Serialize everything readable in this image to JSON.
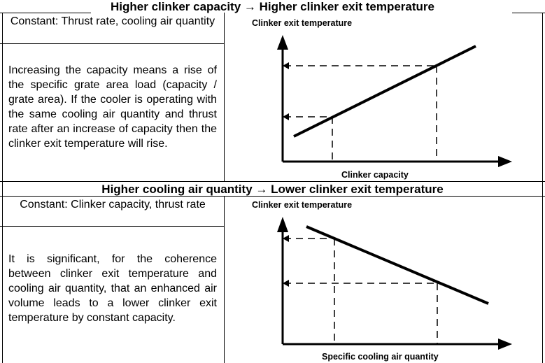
{
  "sections": [
    {
      "title": "Higher clinker capacity → Higher clinker exit temperature",
      "constant": "Constant: Thrust rate, cooling air quantity",
      "description": "Increasing the capacity means a rise of the specific grate area load (capacity / grate area). If the cooler is operating with the same cooling air quantity and thrust rate after an increase of capacity then the clinker exit temperature will rise."
    },
    {
      "title": "Higher cooling air quantity → Lower clinker exit temperature",
      "constant": "Constant: Clinker capacity, thrust rate",
      "description": "It is significant, for the coherence between clinker exit temperature and cooling air quantity, that an enhanced air volume leads to a lower clinker exit temperature by constant capacity."
    }
  ],
  "chart_data": [
    {
      "type": "line",
      "title": "",
      "ylabel": "Clinker exit temperature",
      "xlabel": "Clinker capacity",
      "trend": "increasing",
      "grid": false,
      "reference_points": 2
    },
    {
      "type": "line",
      "title": "",
      "ylabel": "Clinker exit temperature",
      "xlabel": "Specific cooling air quantity",
      "trend": "decreasing",
      "grid": false,
      "reference_points": 2
    }
  ]
}
